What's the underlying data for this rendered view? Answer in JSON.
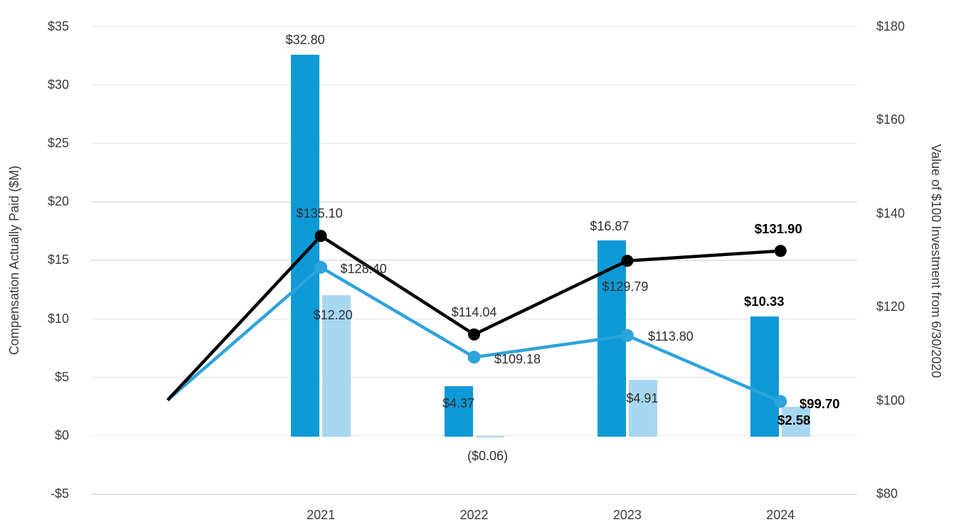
{
  "chart_data": {
    "type": "combo-bar-line",
    "background": "#FFFFFF",
    "grid": true,
    "legend": false,
    "categories": [
      "2021",
      "2022",
      "2023",
      "2024"
    ],
    "left_axis": {
      "title": "Compensation Actually Paid ($M)",
      "min": -5,
      "max": 35,
      "tick_values": [
        35,
        30,
        25,
        20,
        15,
        10,
        5,
        0,
        -5
      ],
      "ticks": [
        "$35",
        "$30",
        "$25",
        "$20",
        "$15",
        "$10",
        "$5",
        "$0",
        "-$5"
      ]
    },
    "right_axis": {
      "title": "Value of $100 Investment from 6/30/2020",
      "min": 80,
      "max": 180,
      "tick_values": [
        180,
        160,
        140,
        120,
        100,
        80
      ],
      "ticks": [
        "$180",
        "$160",
        "$140",
        "$120",
        "$100",
        "$80"
      ]
    },
    "bar_series": [
      {
        "name": "dark-blue-bars",
        "color": "#0D9AD7",
        "axis": "left",
        "values": [
          32.8,
          4.37,
          16.87,
          10.33
        ],
        "labels": [
          "$32.80",
          "$4.37",
          "$16.87",
          "$10.33"
        ],
        "bold": [
          false,
          false,
          false,
          true
        ]
      },
      {
        "name": "light-blue-bars",
        "color": "#A8D7F1",
        "axis": "left",
        "values": [
          12.2,
          -0.06,
          4.91,
          2.58
        ],
        "labels": [
          "$12.20",
          "($0.06)",
          "$4.91",
          "$2.58"
        ],
        "bold": [
          false,
          false,
          false,
          true
        ]
      }
    ],
    "line_series": [
      {
        "name": "light-blue-line",
        "color": "#2EA3DC",
        "axis": "right",
        "x": [
          "6/30/2020",
          "2021",
          "2022",
          "2023",
          "2024"
        ],
        "values": [
          100,
          128.4,
          109.18,
          113.8,
          99.7
        ],
        "labels": [
          "",
          "$128.40",
          "$109.18",
          "$113.80",
          "$99.70"
        ],
        "bold": [
          false,
          false,
          false,
          false,
          true
        ]
      },
      {
        "name": "black-line",
        "color": "#000000",
        "axis": "right",
        "x": [
          "6/30/2020",
          "2021",
          "2022",
          "2023",
          "2024"
        ],
        "values": [
          100,
          135.1,
          114.04,
          129.79,
          131.9
        ],
        "labels": [
          "",
          "$135.10",
          "$114.04",
          "$129.79",
          "$131.90"
        ],
        "bold": [
          false,
          false,
          false,
          false,
          true
        ]
      }
    ]
  }
}
